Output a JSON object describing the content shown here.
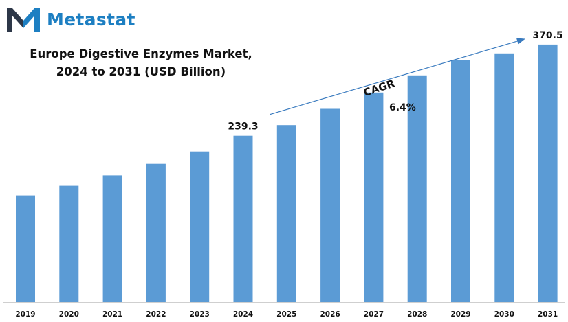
{
  "brand": {
    "name": "Metastat",
    "color": "#1d7fc2",
    "logo_icon": "metastat-m-logo-icon"
  },
  "chart_data": {
    "type": "bar",
    "title_line1": "Europe Digestive Enzymes Market,",
    "title_line2": "2024 to 2031 (USD Billion)",
    "categories": [
      "2019",
      "2020",
      "2021",
      "2022",
      "2023",
      "2024",
      "2025",
      "2026",
      "2027",
      "2028",
      "2029",
      "2030",
      "2031"
    ],
    "values": [
      153.5,
      167.3,
      182.3,
      198.8,
      216.6,
      239.3,
      254.6,
      278.0,
      301.4,
      326.1,
      348.0,
      357.7,
      370.5
    ],
    "data_labels": {
      "2024": "239.3",
      "2031": "370.5"
    },
    "ylim": [
      0,
      400
    ],
    "xlabel": "",
    "ylabel": "",
    "grid": false,
    "legend": "none",
    "bar_color": "#5b9bd5",
    "annotation": {
      "line1": "CAGR",
      "line2": "6.4%"
    }
  }
}
